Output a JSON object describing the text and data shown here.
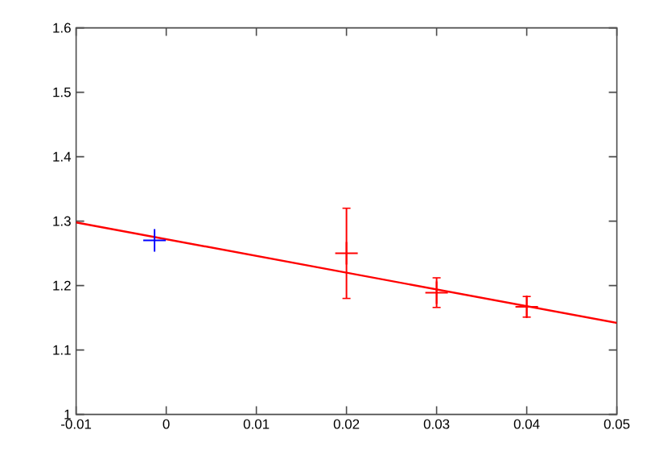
{
  "chart_data": {
    "type": "scatter",
    "xlim": [
      -0.01,
      0.05
    ],
    "ylim": [
      1,
      1.6
    ],
    "xticks": [
      -0.01,
      0,
      0.01,
      0.02,
      0.03,
      0.04,
      0.05
    ],
    "yticks": [
      1,
      1.1,
      1.2,
      1.3,
      1.4,
      1.5,
      1.6
    ],
    "grid": false,
    "series": [
      {
        "type": "line",
        "color": "#ff0000",
        "x": [
          -0.01,
          0.05
        ],
        "values": [
          1.298,
          1.142
        ],
        "marker": "none",
        "line_style": "solid"
      },
      {
        "color": "#ff0000",
        "x": [
          0.02,
          0.03,
          0.04
        ],
        "values": [
          1.25,
          1.189,
          1.167
        ],
        "errors": [
          0.07,
          0.023,
          0.016
        ],
        "marker": "cross"
      },
      {
        "color": "#0000ff",
        "x": [
          -0.0013
        ],
        "values": [
          1.27
        ],
        "marker": "cross"
      }
    ]
  }
}
